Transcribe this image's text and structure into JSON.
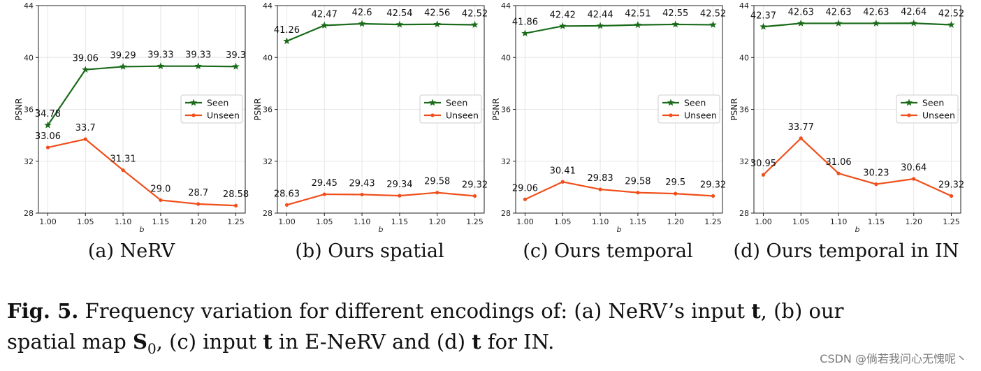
{
  "chart_data": [
    {
      "type": "line",
      "panel_label": "(a) NeRV",
      "x": [
        1.0,
        1.05,
        1.1,
        1.15,
        1.2,
        1.25
      ],
      "tick_labels": [
        "1.00",
        "1.05",
        "1.10",
        "1.15",
        "1.20",
        "1.25"
      ],
      "xlabel": "b",
      "ylabel": "PSNR",
      "ylim": [
        28,
        44
      ],
      "yticks": [
        "28",
        "32",
        "36",
        "40",
        "44"
      ],
      "legend_position": "center-right",
      "series": [
        {
          "name": "Seen",
          "color": "#1a6b1a",
          "marker": "star",
          "values": [
            34.78,
            39.06,
            39.29,
            39.33,
            39.33,
            39.3
          ],
          "labels": [
            "34.78",
            "39.06",
            "39.29",
            "39.33",
            "39.33",
            "39.3"
          ]
        },
        {
          "name": "Unseen",
          "color": "#f04e1a",
          "marker": "dot",
          "values": [
            33.06,
            33.7,
            31.31,
            29.0,
            28.7,
            28.58
          ],
          "labels": [
            "33.06",
            "33.7",
            "31.31",
            "29.0",
            "28.7",
            "28.58"
          ]
        }
      ]
    },
    {
      "type": "line",
      "panel_label": "(b) Ours spatial",
      "x": [
        1.0,
        1.05,
        1.1,
        1.15,
        1.2,
        1.25
      ],
      "tick_labels": [
        "1.00",
        "1.05",
        "1.10",
        "1.15",
        "1.20",
        "1.25"
      ],
      "xlabel": "b",
      "ylabel": "PSNR",
      "ylim": [
        28,
        44
      ],
      "yticks": [
        "28",
        "32",
        "36",
        "40",
        "44"
      ],
      "legend_position": "center-right",
      "series": [
        {
          "name": "Seen",
          "color": "#1a6b1a",
          "marker": "star",
          "values": [
            41.26,
            42.47,
            42.6,
            42.54,
            42.56,
            42.52
          ],
          "labels": [
            "41.26",
            "42.47",
            "42.6",
            "42.54",
            "42.56",
            "42.52"
          ]
        },
        {
          "name": "Unseen",
          "color": "#f04e1a",
          "marker": "dot",
          "values": [
            28.63,
            29.45,
            29.43,
            29.34,
            29.58,
            29.32
          ],
          "labels": [
            "28.63",
            "29.45",
            "29.43",
            "29.34",
            "29.58",
            "29.32"
          ]
        }
      ]
    },
    {
      "type": "line",
      "panel_label": "(c) Ours temporal",
      "x": [
        1.0,
        1.05,
        1.1,
        1.15,
        1.2,
        1.25
      ],
      "tick_labels": [
        "1.00",
        "1.05",
        "1.10",
        "1.15",
        "1.20",
        "1.25"
      ],
      "xlabel": "b",
      "ylabel": "PSNR",
      "ylim": [
        28,
        44
      ],
      "yticks": [
        "28",
        "32",
        "36",
        "40",
        "44"
      ],
      "legend_position": "center-right",
      "series": [
        {
          "name": "Seen",
          "color": "#1a6b1a",
          "marker": "star",
          "values": [
            41.86,
            42.42,
            42.44,
            42.51,
            42.55,
            42.52
          ],
          "labels": [
            "41.86",
            "42.42",
            "42.44",
            "42.51",
            "42.55",
            "42.52"
          ]
        },
        {
          "name": "Unseen",
          "color": "#f04e1a",
          "marker": "dot",
          "values": [
            29.06,
            30.41,
            29.83,
            29.58,
            29.5,
            29.32
          ],
          "labels": [
            "29.06",
            "30.41",
            "29.83",
            "29.58",
            "29.5",
            "29.32"
          ]
        }
      ]
    },
    {
      "type": "line",
      "panel_label": "(d) Ours temporal in IN",
      "x": [
        1.0,
        1.05,
        1.1,
        1.15,
        1.2,
        1.25
      ],
      "tick_labels": [
        "1.00",
        "1.05",
        "1.10",
        "1.15",
        "1.20",
        "1.25"
      ],
      "xlabel": "b",
      "ylabel": "PSNR",
      "ylim": [
        28,
        44
      ],
      "yticks": [
        "28",
        "32",
        "36",
        "40",
        "44"
      ],
      "legend_position": "center-right",
      "series": [
        {
          "name": "Seen",
          "color": "#1a6b1a",
          "marker": "star",
          "values": [
            42.37,
            42.63,
            42.63,
            42.63,
            42.64,
            42.52
          ],
          "labels": [
            "42.37",
            "42.63",
            "42.63",
            "42.63",
            "42.64",
            "42.52"
          ]
        },
        {
          "name": "Unseen",
          "color": "#f04e1a",
          "marker": "dot",
          "values": [
            30.95,
            33.77,
            31.06,
            30.23,
            30.64,
            29.32
          ],
          "labels": [
            "30.95",
            "33.77",
            "31.06",
            "30.23",
            "30.64",
            "29.32"
          ]
        }
      ]
    }
  ],
  "caption": {
    "fig_label": "Fig. 5.",
    "line1_text": " Frequency variation for different encodings of: (a) NeRV’s input ",
    "line1_bold_t": "t",
    "line1_tail": ", (b) our",
    "line2_text": "spatial map ",
    "line2_S": "S",
    "line2_sub": "0",
    "line2_mid": ", (c) input ",
    "line2_bold_t1": "t",
    "line2_mid2": " in E-NeRV and (d) ",
    "line2_bold_t2": "t",
    "line2_tail": " for IN."
  },
  "watermark": "CSDN @倘若我问心无愧呢丶"
}
